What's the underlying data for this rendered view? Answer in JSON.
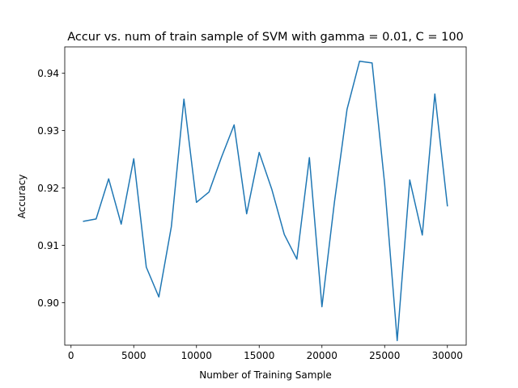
{
  "chart_data": {
    "type": "line",
    "title": "Accur vs. num of train sample of SVM with gamma = 0.01, C = 100",
    "xlabel": "Number of Training Sample",
    "ylabel": "Accuracy",
    "xlim": [
      -500,
      31500
    ],
    "ylim": [
      0.8926,
      0.9446
    ],
    "xticks": [
      0,
      5000,
      10000,
      15000,
      20000,
      25000,
      30000
    ],
    "yticks": [
      0.9,
      0.91,
      0.92,
      0.93,
      0.94
    ],
    "xtick_labels": [
      "0",
      "5000",
      "10000",
      "15000",
      "20000",
      "25000",
      "30000"
    ],
    "ytick_labels": [
      "0.90",
      "0.91",
      "0.92",
      "0.93",
      "0.94"
    ],
    "grid": false,
    "legend": "none",
    "series": [
      {
        "color": "#1f77b4",
        "x": [
          1000,
          2000,
          3000,
          4000,
          5000,
          6000,
          7000,
          8000,
          9000,
          10000,
          11000,
          12000,
          13000,
          14000,
          15000,
          16000,
          17000,
          18000,
          19000,
          20000,
          21000,
          22000,
          23000,
          24000,
          25000,
          26000,
          27000,
          28000,
          29000,
          30000
        ],
        "values": [
          0.9142,
          0.9146,
          0.9216,
          0.9137,
          0.9251,
          0.9062,
          0.901,
          0.9133,
          0.9355,
          0.9175,
          0.9193,
          0.9254,
          0.931,
          0.9155,
          0.9262,
          0.9198,
          0.9119,
          0.9076,
          0.9253,
          0.8993,
          0.9176,
          0.9337,
          0.9421,
          0.9418,
          0.9207,
          0.8934,
          0.9214,
          0.9118,
          0.9364,
          0.9169
        ]
      }
    ]
  }
}
